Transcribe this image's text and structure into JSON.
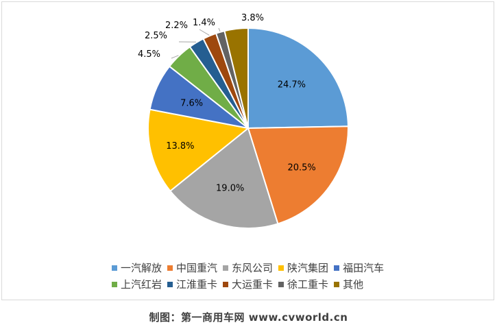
{
  "chart_data": {
    "type": "pie",
    "categories": [
      "一汽解放",
      "中国重汽",
      "东风公司",
      "陕汽集团",
      "福田汽车",
      "上汽红岩",
      "江淮重卡",
      "大运重卡",
      "徐工重卡",
      "其他"
    ],
    "values": [
      24.7,
      20.5,
      19.0,
      13.8,
      7.6,
      4.5,
      2.5,
      2.2,
      1.4,
      3.8
    ],
    "labels": [
      "24.7%",
      "20.5%",
      "19.0%",
      "13.8%",
      "7.6%",
      "4.5%",
      "2.5%",
      "2.2%",
      "1.4%",
      "3.8%"
    ],
    "colors": [
      "#5B9BD5",
      "#ED7D31",
      "#A5A5A5",
      "#FFC000",
      "#4472C4",
      "#70AD47",
      "#255E91",
      "#9E480E",
      "#636363",
      "#997300"
    ],
    "legend_position": "bottom"
  },
  "caption": "制图：第一商用车网 www.cvworld.cn"
}
